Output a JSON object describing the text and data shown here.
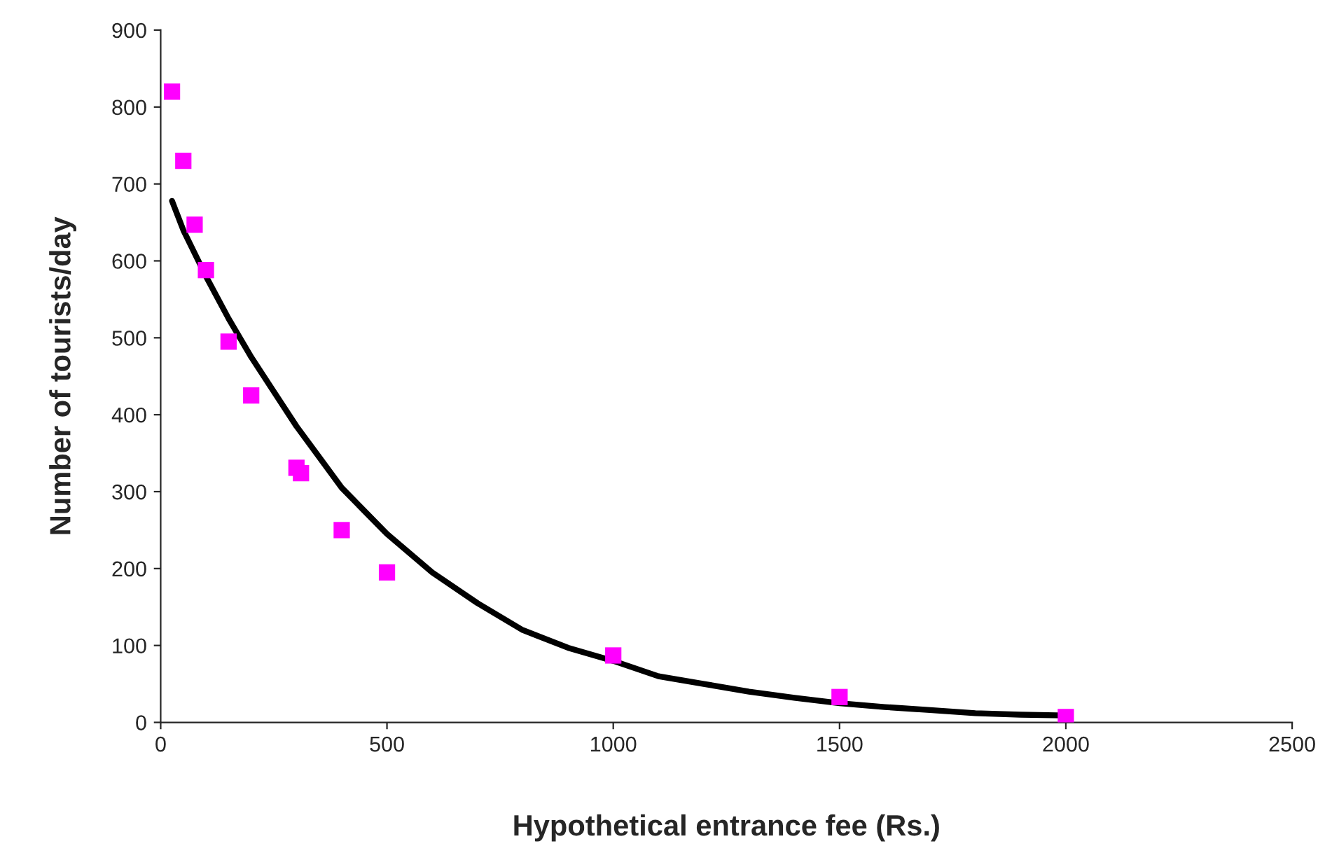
{
  "chart_data": {
    "type": "scatter",
    "xlabel": "Hypothetical entrance fee (Rs.)",
    "ylabel": "Number of tourists/day",
    "xlim": [
      0,
      2500
    ],
    "xticks": [
      0,
      500,
      1000,
      1500,
      2000,
      2500
    ],
    "ylim": [
      0,
      900
    ],
    "yticks": [
      0,
      100,
      200,
      300,
      400,
      500,
      600,
      700,
      800,
      900
    ],
    "grid": false,
    "legend": false,
    "series": [
      {
        "color": "#ff00ff",
        "marker": "square",
        "x": [
          25,
          50,
          75,
          100,
          150,
          200,
          300,
          310,
          400,
          500,
          1000,
          1500,
          2000
        ],
        "values": [
          820,
          730,
          647,
          588,
          495,
          425,
          331,
          324,
          250,
          195,
          87,
          33,
          7
        ]
      },
      {
        "type": "line",
        "color": "#000000",
        "marker": "none",
        "line_style": "solid",
        "x": [
          25,
          50,
          100,
          150,
          200,
          250,
          300,
          350,
          400,
          450,
          500,
          600,
          700,
          800,
          900,
          1000,
          1100,
          1200,
          1300,
          1400,
          1500,
          1600,
          1700,
          1800,
          1900,
          2000
        ],
        "values": [
          678,
          640,
          580,
          525,
          475,
          430,
          385,
          345,
          305,
          275,
          245,
          195,
          155,
          120,
          97,
          80,
          60,
          50,
          40,
          32,
          25,
          20,
          16,
          12,
          10,
          9
        ]
      }
    ]
  }
}
